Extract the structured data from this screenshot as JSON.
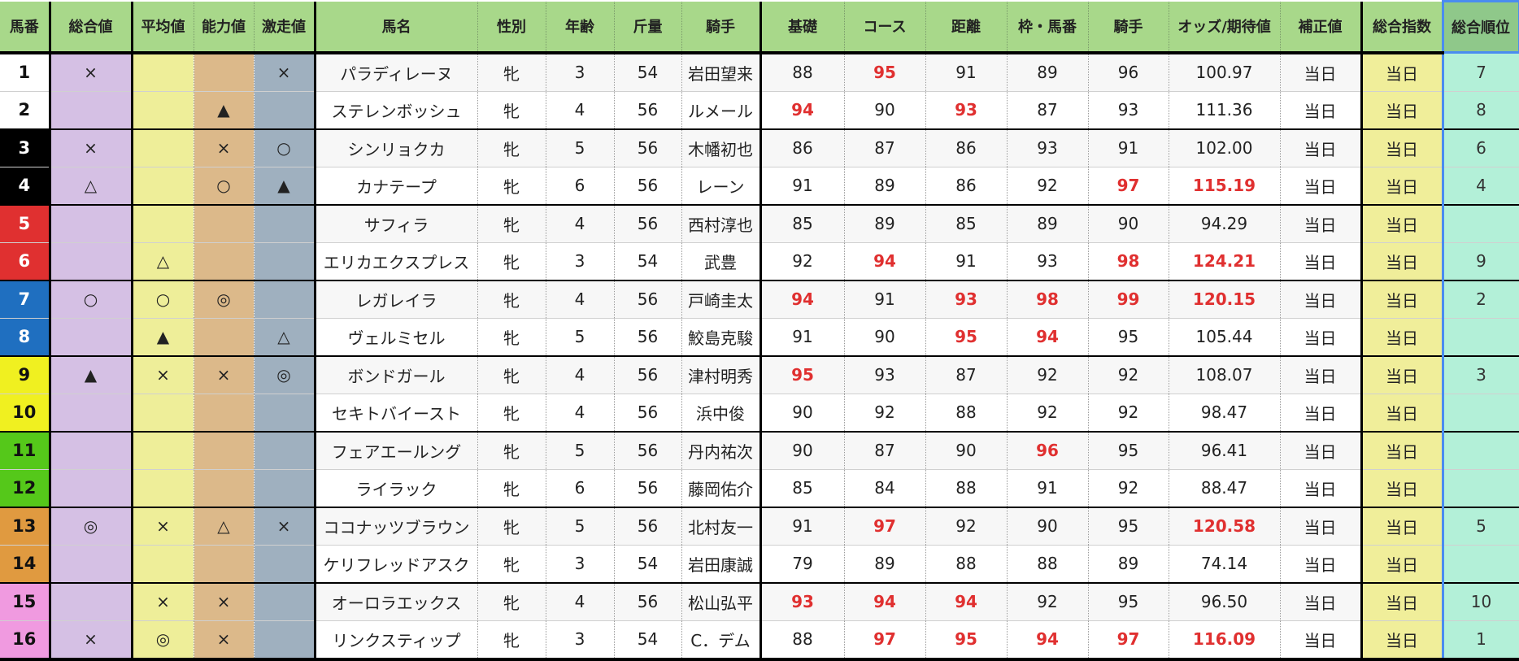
{
  "highlight_color": "#e03030",
  "columns": [
    {
      "key": "no",
      "label": "馬番"
    },
    {
      "key": "total",
      "label": "総合値"
    },
    {
      "key": "avg",
      "label": "平均値"
    },
    {
      "key": "ability",
      "label": "能力値"
    },
    {
      "key": "surge",
      "label": "激走値"
    },
    {
      "key": "name",
      "label": "馬名"
    },
    {
      "key": "sex",
      "label": "性別"
    },
    {
      "key": "age",
      "label": "年齢"
    },
    {
      "key": "weight",
      "label": "斤量"
    },
    {
      "key": "jockey",
      "label": "騎手"
    },
    {
      "key": "base",
      "label": "基礎"
    },
    {
      "key": "course",
      "label": "コース"
    },
    {
      "key": "distance",
      "label": "距離"
    },
    {
      "key": "gate",
      "label": "枠・馬番"
    },
    {
      "key": "jockey_score",
      "label": "騎手"
    },
    {
      "key": "odds",
      "label": "オッズ/期待値"
    },
    {
      "key": "correction",
      "label": "補正値"
    },
    {
      "key": "index",
      "label": "総合指数"
    },
    {
      "key": "rank",
      "label": "総合順位"
    }
  ],
  "frame_colors": {
    "1": "#ffffff",
    "2": "#ffffff",
    "3": "#000000",
    "4": "#000000",
    "5": "#e03030",
    "6": "#e03030",
    "7": "#1f6fc0",
    "8": "#1f6fc0",
    "9": "#f0f020",
    "10": "#f0f020",
    "11": "#55c81a",
    "12": "#55c81a",
    "13": "#e09a40",
    "14": "#e09a40",
    "15": "#f09ae0",
    "16": "#f09ae0"
  },
  "rows": [
    {
      "no": "1",
      "total": "×",
      "avg": "",
      "ability": "",
      "surge": "×",
      "name": "パラディレーヌ",
      "sex": "牝",
      "age": "3",
      "weight": "54",
      "jockey": "岩田望来",
      "base": "88",
      "course": "95",
      "distance": "91",
      "gate": "89",
      "jockey_score": "96",
      "odds": "100.97",
      "correction": "当日",
      "index": "当日",
      "rank": "7",
      "highlight": [
        "course"
      ]
    },
    {
      "no": "2",
      "total": "",
      "avg": "",
      "ability": "▲",
      "surge": "",
      "name": "ステレンボッシュ",
      "sex": "牝",
      "age": "4",
      "weight": "56",
      "jockey": "ルメール",
      "base": "94",
      "course": "90",
      "distance": "93",
      "gate": "87",
      "jockey_score": "93",
      "odds": "111.36",
      "correction": "当日",
      "index": "当日",
      "rank": "8",
      "highlight": [
        "base",
        "distance"
      ]
    },
    {
      "no": "3",
      "total": "×",
      "avg": "",
      "ability": "×",
      "surge": "○",
      "name": "シンリョクカ",
      "sex": "牝",
      "age": "5",
      "weight": "56",
      "jockey": "木幡初也",
      "base": "86",
      "course": "87",
      "distance": "86",
      "gate": "93",
      "jockey_score": "91",
      "odds": "102.00",
      "correction": "当日",
      "index": "当日",
      "rank": "6",
      "highlight": []
    },
    {
      "no": "4",
      "total": "△",
      "avg": "",
      "ability": "○",
      "surge": "▲",
      "name": "カナテープ",
      "sex": "牝",
      "age": "6",
      "weight": "56",
      "jockey": "レーン",
      "base": "91",
      "course": "89",
      "distance": "86",
      "gate": "92",
      "jockey_score": "97",
      "odds": "115.19",
      "correction": "当日",
      "index": "当日",
      "rank": "4",
      "highlight": [
        "jockey_score",
        "odds"
      ]
    },
    {
      "no": "5",
      "total": "",
      "avg": "",
      "ability": "",
      "surge": "",
      "name": "サフィラ",
      "sex": "牝",
      "age": "4",
      "weight": "56",
      "jockey": "西村淳也",
      "base": "85",
      "course": "89",
      "distance": "85",
      "gate": "89",
      "jockey_score": "90",
      "odds": "94.29",
      "correction": "当日",
      "index": "当日",
      "rank": "",
      "highlight": []
    },
    {
      "no": "6",
      "total": "",
      "avg": "△",
      "ability": "",
      "surge": "",
      "name": "エリカエクスプレス",
      "sex": "牝",
      "age": "3",
      "weight": "54",
      "jockey": "武豊",
      "base": "92",
      "course": "94",
      "distance": "91",
      "gate": "93",
      "jockey_score": "98",
      "odds": "124.21",
      "correction": "当日",
      "index": "当日",
      "rank": "9",
      "highlight": [
        "course",
        "jockey_score",
        "odds"
      ]
    },
    {
      "no": "7",
      "total": "○",
      "avg": "○",
      "ability": "◎",
      "surge": "",
      "name": "レガレイラ",
      "sex": "牝",
      "age": "4",
      "weight": "56",
      "jockey": "戸崎圭太",
      "base": "94",
      "course": "91",
      "distance": "93",
      "gate": "98",
      "jockey_score": "99",
      "odds": "120.15",
      "correction": "当日",
      "index": "当日",
      "rank": "2",
      "highlight": [
        "base",
        "distance",
        "gate",
        "jockey_score",
        "odds"
      ]
    },
    {
      "no": "8",
      "total": "",
      "avg": "▲",
      "ability": "",
      "surge": "△",
      "name": "ヴェルミセル",
      "sex": "牝",
      "age": "5",
      "weight": "56",
      "jockey": "鮫島克駿",
      "base": "91",
      "course": "90",
      "distance": "95",
      "gate": "94",
      "jockey_score": "95",
      "odds": "105.44",
      "correction": "当日",
      "index": "当日",
      "rank": "",
      "highlight": [
        "distance",
        "gate"
      ]
    },
    {
      "no": "9",
      "total": "▲",
      "avg": "×",
      "ability": "×",
      "surge": "◎",
      "name": "ボンドガール",
      "sex": "牝",
      "age": "4",
      "weight": "56",
      "jockey": "津村明秀",
      "base": "95",
      "course": "93",
      "distance": "87",
      "gate": "92",
      "jockey_score": "92",
      "odds": "108.07",
      "correction": "当日",
      "index": "当日",
      "rank": "3",
      "highlight": [
        "base"
      ]
    },
    {
      "no": "10",
      "total": "",
      "avg": "",
      "ability": "",
      "surge": "",
      "name": "セキトバイースト",
      "sex": "牝",
      "age": "4",
      "weight": "56",
      "jockey": "浜中俊",
      "base": "90",
      "course": "92",
      "distance": "88",
      "gate": "92",
      "jockey_score": "92",
      "odds": "98.47",
      "correction": "当日",
      "index": "当日",
      "rank": "",
      "highlight": []
    },
    {
      "no": "11",
      "total": "",
      "avg": "",
      "ability": "",
      "surge": "",
      "name": "フェアエールング",
      "sex": "牝",
      "age": "5",
      "weight": "56",
      "jockey": "丹内祐次",
      "base": "90",
      "course": "87",
      "distance": "90",
      "gate": "96",
      "jockey_score": "95",
      "odds": "96.41",
      "correction": "当日",
      "index": "当日",
      "rank": "",
      "highlight": [
        "gate"
      ]
    },
    {
      "no": "12",
      "total": "",
      "avg": "",
      "ability": "",
      "surge": "",
      "name": "ライラック",
      "sex": "牝",
      "age": "6",
      "weight": "56",
      "jockey": "藤岡佑介",
      "base": "85",
      "course": "84",
      "distance": "88",
      "gate": "91",
      "jockey_score": "92",
      "odds": "88.47",
      "correction": "当日",
      "index": "当日",
      "rank": "",
      "highlight": []
    },
    {
      "no": "13",
      "total": "◎",
      "avg": "×",
      "ability": "△",
      "surge": "×",
      "name": "ココナッツブラウン",
      "sex": "牝",
      "age": "5",
      "weight": "56",
      "jockey": "北村友一",
      "base": "91",
      "course": "97",
      "distance": "92",
      "gate": "90",
      "jockey_score": "95",
      "odds": "120.58",
      "correction": "当日",
      "index": "当日",
      "rank": "5",
      "highlight": [
        "course",
        "odds"
      ]
    },
    {
      "no": "14",
      "total": "",
      "avg": "",
      "ability": "",
      "surge": "",
      "name": "ケリフレッドアスク",
      "sex": "牝",
      "age": "3",
      "weight": "54",
      "jockey": "岩田康誠",
      "base": "79",
      "course": "89",
      "distance": "88",
      "gate": "88",
      "jockey_score": "89",
      "odds": "74.14",
      "correction": "当日",
      "index": "当日",
      "rank": "",
      "highlight": []
    },
    {
      "no": "15",
      "total": "",
      "avg": "×",
      "ability": "×",
      "surge": "",
      "name": "オーロラエックス",
      "sex": "牝",
      "age": "4",
      "weight": "56",
      "jockey": "松山弘平",
      "base": "93",
      "course": "94",
      "distance": "94",
      "gate": "92",
      "jockey_score": "95",
      "odds": "96.50",
      "correction": "当日",
      "index": "当日",
      "rank": "10",
      "highlight": [
        "base",
        "course",
        "distance"
      ]
    },
    {
      "no": "16",
      "total": "×",
      "avg": "◎",
      "ability": "×",
      "surge": "",
      "name": "リンクスティップ",
      "sex": "牝",
      "age": "3",
      "weight": "54",
      "jockey": "C．デム",
      "base": "88",
      "course": "97",
      "distance": "95",
      "gate": "94",
      "jockey_score": "97",
      "odds": "116.09",
      "correction": "当日",
      "index": "当日",
      "rank": "1",
      "highlight": [
        "course",
        "distance",
        "gate",
        "jockey_score",
        "odds"
      ]
    }
  ]
}
